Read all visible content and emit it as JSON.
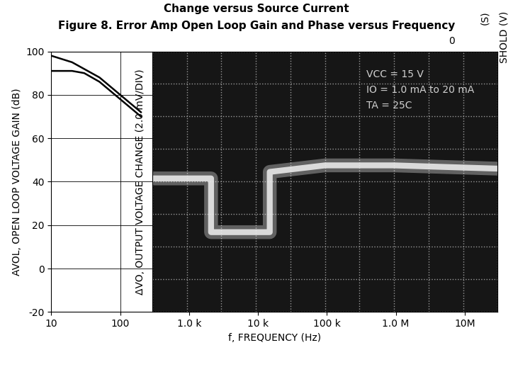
{
  "chart_data": [
    {
      "type": "line",
      "title": "Figure 8. Error Amp Open Loop Gain and Phase versus Frequency",
      "x_label": "f, FREQUENCY (Hz)",
      "y_label": "AVOL, OPEN LOOP VOLTAGE GAIN (dB)",
      "log": "x",
      "xlim": [
        10,
        30000000
      ],
      "xticks": [
        10,
        100,
        {
          "value": 1000,
          "label": "1.0 k"
        },
        {
          "value": 10000,
          "label": "10 k"
        },
        {
          "value": 100000,
          "label": "100 k"
        },
        {
          "value": 1000000,
          "label": "1.0 M"
        },
        {
          "value": 10000000,
          "label": "10M"
        }
      ],
      "ylim": [
        -20,
        100
      ],
      "yticks": [
        -20,
        0,
        20,
        40,
        60,
        80,
        100
      ],
      "grid": true,
      "series": [
        {
          "color": "#000000",
          "x": [
            10,
            20,
            50,
            100,
            200
          ],
          "values": [
            98,
            95,
            88,
            80,
            72
          ]
        },
        {
          "color": "#000000",
          "x": [
            10,
            20,
            30,
            50,
            100,
            200
          ],
          "values": [
            91,
            91,
            90,
            86,
            78,
            70
          ]
        }
      ]
    },
    {
      "type": "line",
      "y_label": "ΔVO, OUTPUT VOLTAGE CHANGE (2.0 mV/DIV)",
      "xlim": [
        0,
        10
      ],
      "xticks": [
        0,
        1,
        2,
        3,
        4,
        5,
        6,
        7,
        8,
        9,
        10
      ],
      "ylim": [
        -8,
        8
      ],
      "yticks": [
        -8,
        -6,
        -4,
        -2,
        0,
        2,
        4,
        6,
        8
      ],
      "grid": true,
      "tick_labels": false,
      "annotations": [
        "VCC = 15 V",
        "IO = 1.0 mA to 20 mA",
        "TA = 25C"
      ],
      "series": [
        {
          "color": "#f0f0f0",
          "x": [
            0,
            1.7,
            1.7,
            3.4,
            3.4,
            5,
            7,
            10
          ],
          "values": [
            0.2,
            0.2,
            -3.1,
            -3.1,
            0.6,
            1.0,
            1.0,
            0.8
          ]
        }
      ]
    }
  ],
  "fragments": [
    "Change versus Source Current",
    "SHOLD (V)",
    "(S)",
    "0"
  ]
}
